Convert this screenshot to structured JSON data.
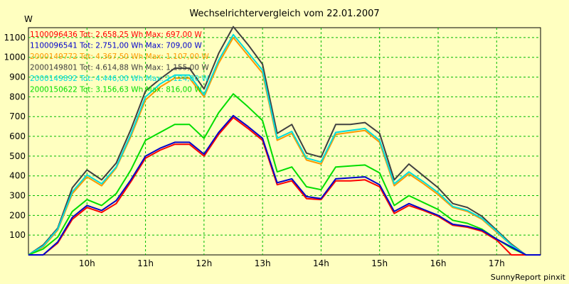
{
  "chart_data": {
    "type": "line",
    "title": "Wechselrichtervergleich vom 22.01.2007",
    "ylabel": "W",
    "xlabel": "",
    "ylim": [
      0,
      1150
    ],
    "yticks": [
      100,
      200,
      300,
      400,
      500,
      600,
      700,
      800,
      900,
      1000,
      1100
    ],
    "xlim": [
      9.0,
      17.75
    ],
    "xticks": [
      {
        "value": 10,
        "label": "10h"
      },
      {
        "value": 11,
        "label": "11h"
      },
      {
        "value": 12,
        "label": "12h"
      },
      {
        "value": 13,
        "label": "13h"
      },
      {
        "value": 14,
        "label": "14h"
      },
      {
        "value": 15,
        "label": "15h"
      },
      {
        "value": 16,
        "label": "16h"
      },
      {
        "value": 17,
        "label": "17h"
      }
    ],
    "grid": true,
    "legend_position": "top-left",
    "credit": "SunnyReport pinxit",
    "x": [
      9.0,
      9.25,
      9.5,
      9.75,
      10.0,
      10.25,
      10.5,
      10.75,
      11.0,
      11.25,
      11.5,
      11.75,
      12.0,
      12.25,
      12.5,
      12.75,
      13.0,
      13.25,
      13.5,
      13.75,
      14.0,
      14.25,
      14.5,
      14.75,
      15.0,
      15.25,
      15.5,
      15.75,
      16.0,
      16.25,
      16.5,
      16.75,
      17.0,
      17.25,
      17.5,
      17.75
    ],
    "series": [
      {
        "name": "1100096436",
        "legend": "1100096436 Tot: 2.658,25 Wh Max: 697,00 W",
        "color": "#ff0000",
        "values": [
          0,
          0,
          60,
          180,
          240,
          215,
          260,
          370,
          490,
          530,
          560,
          560,
          500,
          610,
          695,
          640,
          580,
          355,
          375,
          285,
          280,
          375,
          375,
          380,
          345,
          210,
          250,
          225,
          195,
          150,
          140,
          120,
          75,
          0,
          0,
          0
        ]
      },
      {
        "name": "1100096541",
        "legend": "1100096541 Tot: 2.751,00 Wh Max: 709,00 W",
        "color": "#0000cc",
        "values": [
          0,
          0,
          65,
          190,
          250,
          225,
          275,
          380,
          500,
          540,
          570,
          570,
          510,
          620,
          705,
          650,
          590,
          365,
          385,
          295,
          285,
          385,
          390,
          395,
          355,
          220,
          260,
          230,
          200,
          155,
          145,
          125,
          80,
          40,
          0,
          0
        ]
      },
      {
        "name": "2000149772",
        "legend": "2000149772 Tot: 4.367,50 Wh Max: 1.107,00 W",
        "color": "#ff9900",
        "values": [
          0,
          40,
          125,
          310,
          395,
          350,
          440,
          600,
          785,
          850,
          895,
          895,
          800,
          970,
          1100,
          1010,
          920,
          580,
          615,
          480,
          460,
          610,
          620,
          630,
          570,
          350,
          410,
          360,
          305,
          240,
          220,
          180,
          115,
          50,
          0,
          0
        ]
      },
      {
        "name": "2000149801",
        "legend": "2000149801 Tot: 4.614,88 Wh Max: 1.155,00 W",
        "color": "#404040",
        "values": [
          0,
          50,
          135,
          340,
          430,
          380,
          465,
          635,
          830,
          890,
          945,
          945,
          840,
          1020,
          1155,
          1065,
          965,
          615,
          660,
          515,
          495,
          660,
          660,
          670,
          615,
          380,
          460,
          400,
          340,
          260,
          240,
          195,
          125,
          55,
          0,
          0
        ]
      },
      {
        "name": "2000149892",
        "legend": "2000149892 Tot: 4.446,00 Wh Max: 1.124,00 W",
        "color": "#00dddd",
        "values": [
          0,
          45,
          130,
          320,
          405,
          360,
          445,
          610,
          800,
          865,
          910,
          910,
          810,
          985,
          1115,
          1025,
          935,
          590,
          625,
          490,
          470,
          620,
          630,
          640,
          580,
          360,
          420,
          370,
          315,
          245,
          225,
          185,
          120,
          50,
          0,
          0
        ]
      },
      {
        "name": "2000150622",
        "legend": "2000150622 Tot: 3.156,63 Wh Max: 816,00 W",
        "color": "#00dd00",
        "values": [
          0,
          30,
          90,
          220,
          280,
          250,
          310,
          430,
          580,
          620,
          660,
          660,
          590,
          720,
          815,
          750,
          680,
          420,
          445,
          345,
          330,
          445,
          450,
          455,
          415,
          250,
          300,
          265,
          230,
          175,
          160,
          130,
          80,
          35,
          0,
          0
        ]
      }
    ]
  }
}
